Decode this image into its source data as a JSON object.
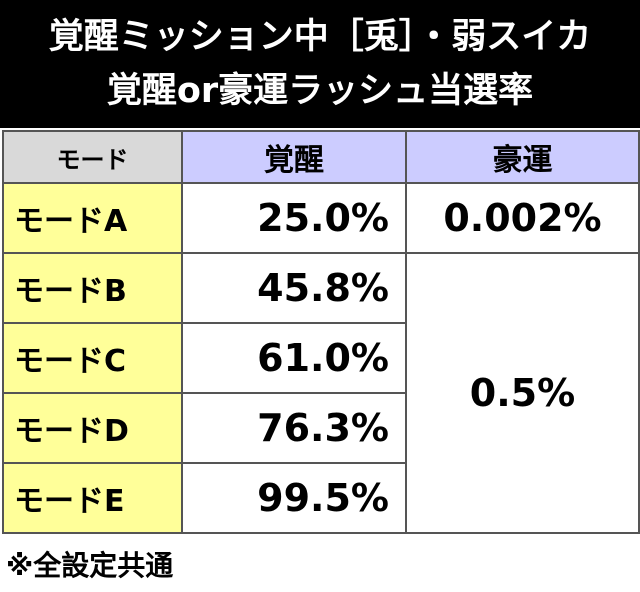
{
  "header": {
    "title_lines": [
      "覚醒ミッション中［兎］・弱スイカ",
      "覚醒or豪運ラッシュ当選率"
    ]
  },
  "table": {
    "columns": [
      "モード",
      "覚醒",
      "豪運"
    ],
    "rows": [
      [
        "モードA",
        "25.0%",
        "0.002%"
      ],
      [
        "モードB",
        "45.8%",
        "0.5%"
      ],
      [
        "モードC",
        "61.0%"
      ],
      [
        "モードD",
        "76.3%"
      ],
      [
        "モードE",
        "99.5%"
      ]
    ]
  },
  "footnote": "※全設定共通"
}
